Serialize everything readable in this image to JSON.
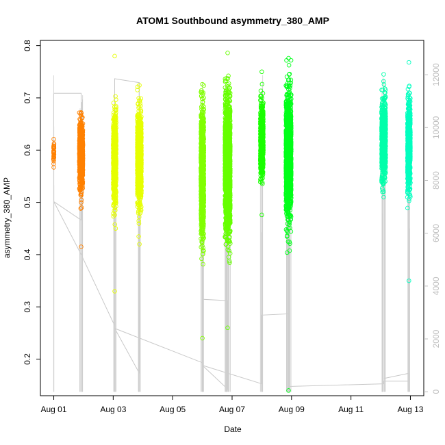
{
  "chart_data": {
    "type": "scatter",
    "title": "ATOM1 Southbound asymmetry_380_AMP",
    "xlabel": "Date",
    "ylabel": "asymmetry_380_AMP",
    "x_tick_labels": [
      "Aug 01",
      "Aug 03",
      "Aug 05",
      "Aug 07",
      "Aug 09",
      "Aug 11",
      "Aug 13"
    ],
    "x_ticks_days": [
      1,
      3,
      5,
      7,
      9,
      11,
      13
    ],
    "xlim_days": [
      0.55,
      13.45
    ],
    "ylim": [
      0.13,
      0.81
    ],
    "y_ticks": [
      0.2,
      0.3,
      0.4,
      0.5,
      0.6,
      0.7,
      0.8
    ],
    "y_right_ticks": [
      0,
      2000,
      4000,
      6000,
      8000,
      10000,
      12000
    ],
    "y_right_lim": [
      -150,
      13300
    ],
    "point_series": [
      {
        "day": 1.0,
        "width": 0.02,
        "color": "#ff8000",
        "center": 0.595,
        "spread": 0.012,
        "count": 30,
        "min": 0.567,
        "max": 0.621
      },
      {
        "day": 1.92,
        "width": 0.12,
        "color": "#ff8000",
        "center": 0.59,
        "spread": 0.03,
        "count": 700,
        "min": 0.415,
        "max": 0.672
      },
      {
        "day": 3.05,
        "width": 0.1,
        "color": "#e6ff00",
        "center": 0.585,
        "spread": 0.045,
        "count": 600,
        "min": 0.33,
        "max": 0.78
      },
      {
        "day": 3.88,
        "width": 0.14,
        "color": "#e6ff00",
        "center": 0.585,
        "spread": 0.04,
        "count": 900,
        "min": 0.42,
        "max": 0.724
      },
      {
        "day": 6.0,
        "width": 0.1,
        "color": "#80ff00",
        "center": 0.56,
        "spread": 0.06,
        "count": 900,
        "min": 0.24,
        "max": 0.726
      },
      {
        "day": 6.85,
        "width": 0.18,
        "color": "#66ff00",
        "center": 0.57,
        "spread": 0.06,
        "count": 1600,
        "min": 0.26,
        "max": 0.786
      },
      {
        "day": 8.0,
        "width": 0.1,
        "color": "#1aff00",
        "center": 0.62,
        "spread": 0.035,
        "count": 600,
        "min": 0.476,
        "max": 0.75
      },
      {
        "day": 8.9,
        "width": 0.18,
        "color": "#00ff1a",
        "center": 0.59,
        "spread": 0.055,
        "count": 1500,
        "min": 0.14,
        "max": 0.776
      },
      {
        "day": 12.1,
        "width": 0.14,
        "color": "#00ffaa",
        "center": 0.62,
        "spread": 0.035,
        "count": 900,
        "min": 0.51,
        "max": 0.745
      },
      {
        "day": 12.95,
        "width": 0.1,
        "color": "#00ffbf",
        "center": 0.61,
        "spread": 0.04,
        "count": 700,
        "min": 0.35,
        "max": 0.768
      }
    ],
    "index_line": [
      [
        1.0,
        11300
      ],
      [
        1.92,
        11300
      ],
      [
        1.92,
        6500
      ],
      [
        1.0,
        7200
      ],
      [
        1.92,
        5200
      ],
      [
        3.05,
        2500
      ],
      [
        3.05,
        11750
      ],
      [
        3.05,
        11850
      ],
      [
        3.88,
        11700
      ],
      [
        3.88,
        700
      ],
      [
        3.05,
        2400
      ],
      [
        6.0,
        1100
      ],
      [
        6.0,
        3500
      ],
      [
        6.85,
        3450
      ],
      [
        6.85,
        100
      ],
      [
        6.0,
        1000
      ],
      [
        8.0,
        300
      ],
      [
        8.0,
        2900
      ],
      [
        8.9,
        2950
      ],
      [
        8.9,
        200
      ],
      [
        12.1,
        300
      ],
      [
        12.1,
        400
      ],
      [
        12.95,
        400
      ],
      [
        12.95,
        700
      ],
      [
        12.1,
        500
      ]
    ],
    "grid": false,
    "legend": "none"
  }
}
